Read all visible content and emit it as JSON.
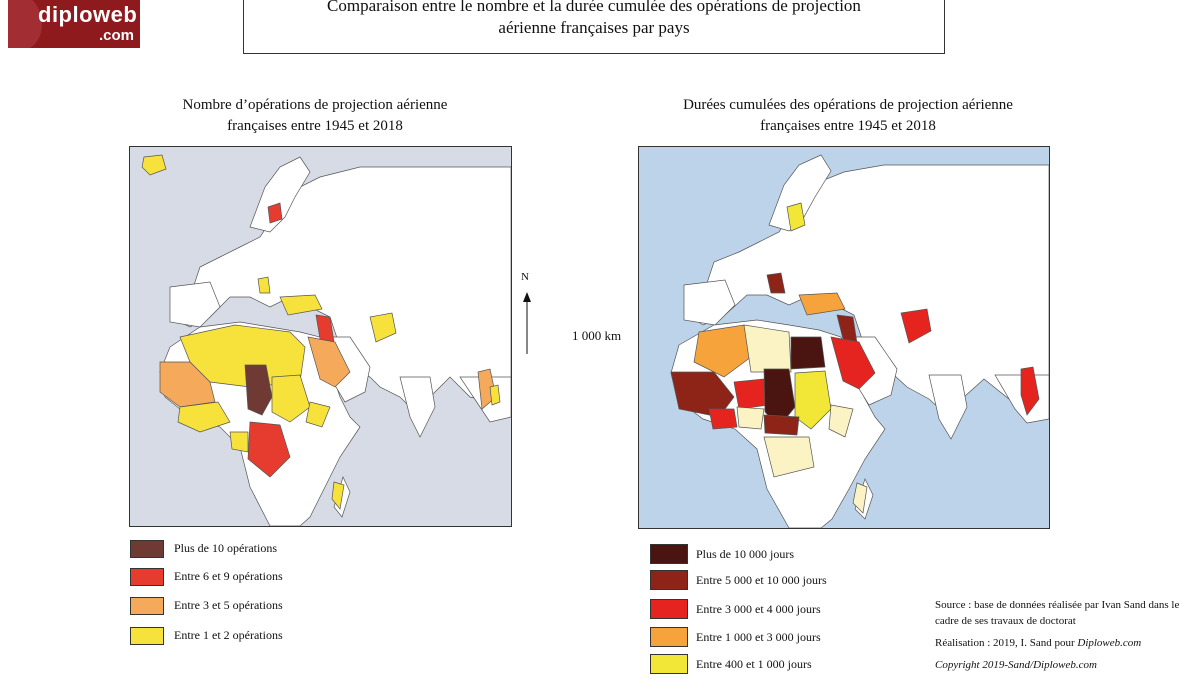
{
  "logo": {
    "line1": "diploweb",
    "line2": ".com"
  },
  "header": {
    "title_line1": "Comparaison entre le nombre et la durée cumulée des opérations de projection",
    "title_line2": "aérienne françaises par pays"
  },
  "map_left": {
    "title_line1": "Nombre d’opérations de projection aérienne",
    "title_line2": "françaises entre 1945 et 2018"
  },
  "map_right": {
    "title_line1": "Durées cumulées des opérations de projection aérienne",
    "title_line2": "françaises entre 1945 et 2018"
  },
  "north_label": "N",
  "scale_label": "1 000 km",
  "legend_left": [
    {
      "label": "Plus de 10 opérations",
      "color": "#6e3a33"
    },
    {
      "label": "Entre 6 et 9 opérations",
      "color": "#e63c2f"
    },
    {
      "label": "Entre 3 et 5 opérations",
      "color": "#f5a95a"
    },
    {
      "label": "Entre 1 et 2 opérations",
      "color": "#f7e23b"
    }
  ],
  "legend_right": [
    {
      "label": "Plus de 10 000 jours",
      "color": "#4a1410"
    },
    {
      "label": "Entre 5 000 et 10 000 jours",
      "color": "#8e2418"
    },
    {
      "label": "Entre 3 000 et 4 000 jours",
      "color": "#e6241f"
    },
    {
      "label": "Entre 1 000 et 3 000 jours",
      "color": "#f6a33c"
    },
    {
      "label": "Entre 400 et 1 000 jours",
      "color": "#f2e637"
    }
  ],
  "credits": {
    "source": "Source : base de données réalisée par Ivan Sand dans le cadre de ses travaux de doctorat",
    "realisation_prefix": "Réalisation : 2019, I. Sand pour ",
    "realisation_site": "Diploweb.com",
    "copyright": "Copyright 2019-Sand/Diploweb.com"
  },
  "colors": {
    "sea_left": "#d6dbe6",
    "sea_right": "#bcd3ea",
    "land": "#ffffff",
    "border": "#555555",
    "pale_right": "#fbf3c4"
  }
}
